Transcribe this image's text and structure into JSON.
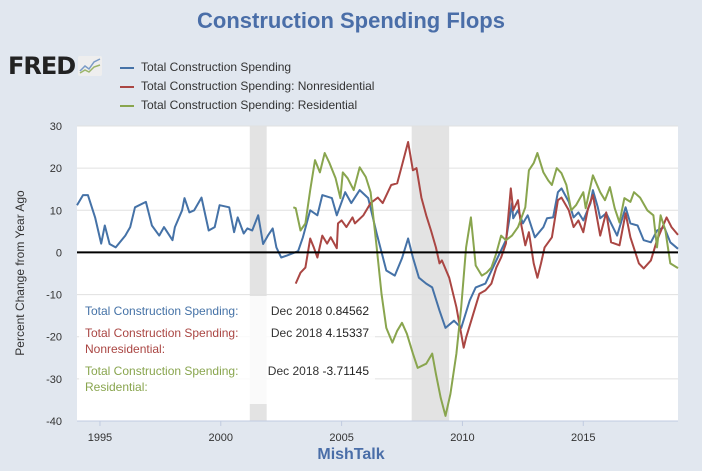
{
  "title": "Construction Spending Flops",
  "footer": "MishTalk",
  "logo": "FRED",
  "tooltip": [
    {
      "label": "Total Construction Spending:",
      "date": "Dec 2018",
      "value": "0.84562",
      "color": "#4572a7"
    },
    {
      "label": "Total Construction Spending: Nonresidential:",
      "date": "Dec 2018",
      "value": "4.15337",
      "color": "#aa4643"
    },
    {
      "label": "Total Construction Spending: Residential:",
      "date": "Dec 2018",
      "value": "-3.71145",
      "color": "#89a54e"
    }
  ],
  "chart_data": {
    "type": "line",
    "title": "Construction Spending Flops",
    "xlabel": "",
    "ylabel": "Percent Change from Year Ago",
    "xlim": [
      1994.05,
      2018.92
    ],
    "ylim": [
      -40,
      30
    ],
    "yticks": [
      30,
      20,
      10,
      0,
      -10,
      -20,
      -30,
      -40
    ],
    "xticks": [
      1995,
      2000,
      2005,
      2010,
      2015
    ],
    "grid": true,
    "legend_position": "top-left",
    "recessions": [
      [
        2001.2,
        2001.9
      ],
      [
        2007.9,
        2009.45
      ]
    ],
    "series": [
      {
        "name": "Total Construction Spending",
        "color": "#4572a7",
        "points": [
          [
            1994.05,
            11.2
          ],
          [
            1994.3,
            13.6
          ],
          [
            1994.5,
            13.6
          ],
          [
            1994.8,
            8.3
          ],
          [
            1995.05,
            2.1
          ],
          [
            1995.2,
            6.4
          ],
          [
            1995.4,
            2
          ],
          [
            1995.65,
            1.2
          ],
          [
            1996.05,
            4
          ],
          [
            1996.25,
            6
          ],
          [
            1996.45,
            10.7
          ],
          [
            1996.9,
            12
          ],
          [
            1997.15,
            6.4
          ],
          [
            1997.45,
            4
          ],
          [
            1997.65,
            6
          ],
          [
            1998.0,
            2.9
          ],
          [
            1998.1,
            6
          ],
          [
            1998.4,
            10
          ],
          [
            1998.5,
            12.9
          ],
          [
            1998.7,
            9.5
          ],
          [
            1998.9,
            10
          ],
          [
            1999.2,
            13
          ],
          [
            1999.5,
            5.2
          ],
          [
            1999.75,
            6
          ],
          [
            1999.95,
            11.2
          ],
          [
            2000.35,
            10.7
          ],
          [
            2000.55,
            4.8
          ],
          [
            2000.7,
            8.3
          ],
          [
            2000.95,
            4.5
          ],
          [
            2001.1,
            5.7
          ],
          [
            2001.3,
            5.2
          ],
          [
            2001.55,
            8.8
          ],
          [
            2001.75,
            2
          ],
          [
            2001.95,
            4
          ],
          [
            2002.15,
            5.7
          ],
          [
            2002.3,
            1.2
          ],
          [
            2002.5,
            -1.2
          ],
          [
            2002.75,
            -0.7
          ],
          [
            2003.2,
            0.3
          ],
          [
            2003.4,
            3.6
          ],
          [
            2003.7,
            10
          ],
          [
            2004.0,
            8.8
          ],
          [
            2004.2,
            13.6
          ],
          [
            2004.6,
            12.9
          ],
          [
            2004.8,
            8.8
          ],
          [
            2005.15,
            14.3
          ],
          [
            2005.4,
            11.7
          ],
          [
            2005.75,
            14.8
          ],
          [
            2006.1,
            12.9
          ],
          [
            2006.45,
            4.5
          ],
          [
            2006.85,
            -4.3
          ],
          [
            2007.2,
            -5.5
          ],
          [
            2007.5,
            -1.4
          ],
          [
            2007.75,
            3.3
          ],
          [
            2007.95,
            -1.2
          ],
          [
            2008.2,
            -6
          ],
          [
            2008.5,
            -7.4
          ],
          [
            2008.75,
            -8.3
          ],
          [
            2009.05,
            -13.8
          ],
          [
            2009.3,
            -17.9
          ],
          [
            2009.65,
            -16.2
          ],
          [
            2009.95,
            -17.9
          ],
          [
            2010.3,
            -11.4
          ],
          [
            2010.55,
            -8.3
          ],
          [
            2010.95,
            -7.4
          ],
          [
            2011.4,
            -1.9
          ],
          [
            2011.6,
            0.5
          ],
          [
            2011.8,
            2.9
          ],
          [
            2012.05,
            11.7
          ],
          [
            2012.1,
            8.1
          ],
          [
            2012.3,
            10
          ],
          [
            2012.5,
            6.9
          ],
          [
            2012.7,
            8.8
          ],
          [
            2013.0,
            3.6
          ],
          [
            2013.35,
            6
          ],
          [
            2013.5,
            8.1
          ],
          [
            2013.75,
            8.3
          ],
          [
            2013.95,
            14.3
          ],
          [
            2014.1,
            15.2
          ],
          [
            2014.4,
            12
          ],
          [
            2014.6,
            8.3
          ],
          [
            2014.8,
            9.5
          ],
          [
            2015.0,
            7.6
          ],
          [
            2015.3,
            11.7
          ],
          [
            2015.4,
            14.8
          ],
          [
            2015.6,
            10.7
          ],
          [
            2015.7,
            8.1
          ],
          [
            2015.95,
            9.3
          ],
          [
            2016.15,
            6.9
          ],
          [
            2016.4,
            4
          ],
          [
            2016.75,
            10.7
          ],
          [
            2016.95,
            6.9
          ],
          [
            2017.25,
            6.4
          ],
          [
            2017.5,
            2.9
          ],
          [
            2017.8,
            2.4
          ],
          [
            2018.05,
            5.2
          ],
          [
            2018.35,
            6
          ],
          [
            2018.6,
            2.4
          ],
          [
            2018.92,
            0.85
          ]
        ]
      },
      {
        "name": "Total Construction Spending: Nonresidential",
        "color": "#aa4643",
        "points": [
          [
            2003.1,
            -7.4
          ],
          [
            2003.3,
            -4.8
          ],
          [
            2003.5,
            -3.6
          ],
          [
            2003.7,
            3.3
          ],
          [
            2003.85,
            1.2
          ],
          [
            2004.0,
            -1.2
          ],
          [
            2004.2,
            4
          ],
          [
            2004.4,
            2.1
          ],
          [
            2004.55,
            3.6
          ],
          [
            2004.8,
            1
          ],
          [
            2004.85,
            6.9
          ],
          [
            2005.0,
            7.6
          ],
          [
            2005.2,
            6
          ],
          [
            2005.45,
            8.3
          ],
          [
            2005.55,
            6.9
          ],
          [
            2005.9,
            8.8
          ],
          [
            2006.2,
            11.7
          ],
          [
            2006.5,
            13
          ],
          [
            2006.7,
            11.7
          ],
          [
            2007.05,
            16
          ],
          [
            2007.3,
            16.4
          ],
          [
            2007.5,
            20.7
          ],
          [
            2007.75,
            26.2
          ],
          [
            2007.95,
            19.5
          ],
          [
            2008.1,
            20
          ],
          [
            2008.3,
            13
          ],
          [
            2008.5,
            8.8
          ],
          [
            2008.7,
            5.2
          ],
          [
            2008.9,
            1.2
          ],
          [
            2009.05,
            -2.6
          ],
          [
            2009.15,
            -1.9
          ],
          [
            2009.45,
            -6
          ],
          [
            2009.75,
            -13
          ],
          [
            2010.05,
            -22.6
          ],
          [
            2010.15,
            -20.2
          ],
          [
            2010.4,
            -15.5
          ],
          [
            2010.7,
            -9.8
          ],
          [
            2010.95,
            -9
          ],
          [
            2011.2,
            -7.4
          ],
          [
            2011.4,
            -3.6
          ],
          [
            2011.6,
            -1.2
          ],
          [
            2011.8,
            2.1
          ],
          [
            2012.0,
            15.2
          ],
          [
            2012.1,
            10
          ],
          [
            2012.3,
            12.4
          ],
          [
            2012.4,
            7.6
          ],
          [
            2012.6,
            1.7
          ],
          [
            2012.75,
            4.8
          ],
          [
            2012.95,
            -2.6
          ],
          [
            2013.1,
            -6
          ],
          [
            2013.25,
            -2.6
          ],
          [
            2013.4,
            1.2
          ],
          [
            2013.7,
            3.6
          ],
          [
            2013.95,
            12.4
          ],
          [
            2014.1,
            13
          ],
          [
            2014.4,
            10
          ],
          [
            2014.6,
            6
          ],
          [
            2014.8,
            7.6
          ],
          [
            2015.0,
            4.8
          ],
          [
            2015.2,
            10.5
          ],
          [
            2015.4,
            13.6
          ],
          [
            2015.7,
            4
          ],
          [
            2015.95,
            9.5
          ],
          [
            2016.15,
            2.4
          ],
          [
            2016.5,
            1.7
          ],
          [
            2016.75,
            9.3
          ],
          [
            2016.95,
            3.6
          ],
          [
            2017.3,
            -2.6
          ],
          [
            2017.5,
            -3.8
          ],
          [
            2017.8,
            -1.9
          ],
          [
            2018.05,
            2.9
          ],
          [
            2018.45,
            8.3
          ],
          [
            2018.65,
            6
          ],
          [
            2018.92,
            4.15
          ]
        ]
      },
      {
        "name": "Total Construction Spending: Residential",
        "color": "#89a54e",
        "points": [
          [
            2003.0,
            10.7
          ],
          [
            2003.1,
            10.5
          ],
          [
            2003.3,
            5.2
          ],
          [
            2003.5,
            6.9
          ],
          [
            2003.7,
            14.8
          ],
          [
            2003.9,
            21.9
          ],
          [
            2004.1,
            19
          ],
          [
            2004.3,
            23.6
          ],
          [
            2004.5,
            21.2
          ],
          [
            2004.75,
            17.6
          ],
          [
            2004.95,
            12.9
          ],
          [
            2005.05,
            19
          ],
          [
            2005.25,
            17.6
          ],
          [
            2005.5,
            14.8
          ],
          [
            2005.75,
            20.2
          ],
          [
            2006.0,
            17.9
          ],
          [
            2006.2,
            14.3
          ],
          [
            2006.45,
            1.2
          ],
          [
            2006.65,
            -9.8
          ],
          [
            2006.85,
            -17.9
          ],
          [
            2007.1,
            -21.4
          ],
          [
            2007.3,
            -18.6
          ],
          [
            2007.5,
            -16.7
          ],
          [
            2007.7,
            -19.3
          ],
          [
            2007.95,
            -24
          ],
          [
            2008.15,
            -27.4
          ],
          [
            2008.5,
            -26.4
          ],
          [
            2008.75,
            -24
          ],
          [
            2008.9,
            -28.8
          ],
          [
            2009.1,
            -34.5
          ],
          [
            2009.3,
            -38.8
          ],
          [
            2009.5,
            -33.6
          ],
          [
            2009.75,
            -24
          ],
          [
            2009.95,
            -13
          ],
          [
            2010.15,
            1.2
          ],
          [
            2010.35,
            8.3
          ],
          [
            2010.55,
            -3.1
          ],
          [
            2010.8,
            -5.5
          ],
          [
            2011.0,
            -4.8
          ],
          [
            2011.2,
            -3.6
          ],
          [
            2011.4,
            -0.2
          ],
          [
            2011.6,
            4
          ],
          [
            2011.8,
            2.9
          ],
          [
            2012.05,
            4
          ],
          [
            2012.3,
            6
          ],
          [
            2012.6,
            10.7
          ],
          [
            2012.75,
            19.5
          ],
          [
            2012.95,
            21.2
          ],
          [
            2013.1,
            23.6
          ],
          [
            2013.35,
            19
          ],
          [
            2013.55,
            17.1
          ],
          [
            2013.7,
            16
          ],
          [
            2013.9,
            20
          ],
          [
            2014.1,
            18.8
          ],
          [
            2014.3,
            16
          ],
          [
            2014.5,
            10
          ],
          [
            2014.7,
            11.2
          ],
          [
            2015.0,
            14.3
          ],
          [
            2015.1,
            10.5
          ],
          [
            2015.4,
            18.3
          ],
          [
            2015.7,
            14.3
          ],
          [
            2015.9,
            12.4
          ],
          [
            2016.1,
            15.5
          ],
          [
            2016.3,
            10.5
          ],
          [
            2016.5,
            7.1
          ],
          [
            2016.7,
            12.9
          ],
          [
            2016.95,
            12
          ],
          [
            2017.1,
            14.3
          ],
          [
            2017.35,
            13
          ],
          [
            2017.65,
            10
          ],
          [
            2017.9,
            8.8
          ],
          [
            2018.05,
            1.2
          ],
          [
            2018.2,
            8.8
          ],
          [
            2018.4,
            5.2
          ],
          [
            2018.6,
            -2.6
          ],
          [
            2018.92,
            -3.71
          ]
        ]
      }
    ]
  }
}
